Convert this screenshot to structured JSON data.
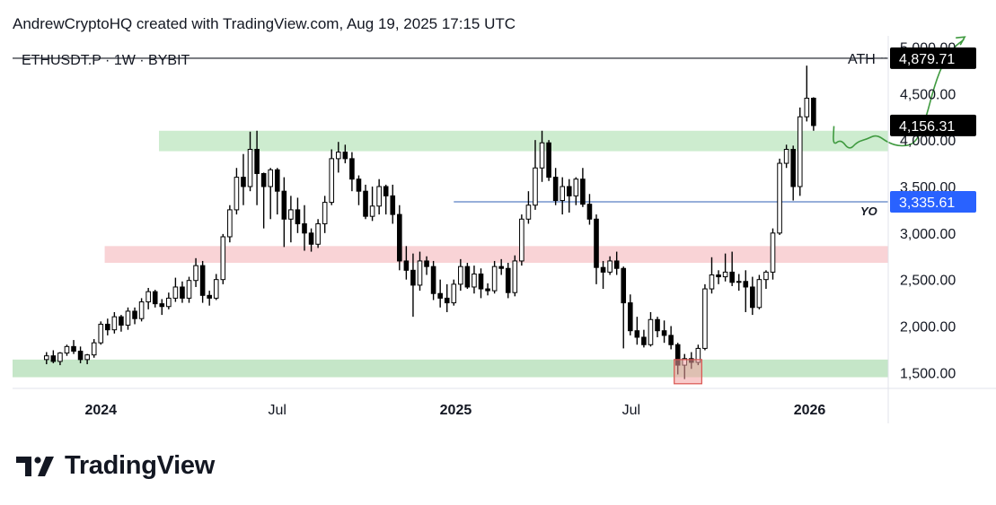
{
  "header": {
    "attribution": "AndrewCryptoHQ created with TradingView.com, Aug 19, 2025 17:15 UTC"
  },
  "footer": {
    "brand": "TradingView"
  },
  "chart_data": {
    "type": "candlestick",
    "title": "ETHUSDT.P · 1W · BYBIT",
    "x_ticks": [
      "2024",
      "Jul",
      "2025",
      "Jul",
      "2026"
    ],
    "y_ticks": [
      "5,000.00",
      "4,500.00",
      "4,000.00",
      "3,500.00",
      "3,000.00",
      "2,500.00",
      "2,000.00",
      "1,500.00"
    ],
    "ylim": [
      1330,
      5120
    ],
    "x_range": [
      "2023-10-02",
      "2026-03-23"
    ],
    "grid": false,
    "zones": [
      {
        "kind": "support",
        "from": 3880,
        "to": 4100,
        "color": "#cdeccf",
        "x_start": "2024-03-01",
        "x_end": "2026-03-23"
      },
      {
        "kind": "resistance",
        "from": 2680,
        "to": 2860,
        "color": "#f9d3d6",
        "x_start": "2024-01-05",
        "x_end": "2026-03-23"
      },
      {
        "kind": "support",
        "from": 1450,
        "to": 1640,
        "color": "#c5e6c8",
        "x_start": "2023-10-02",
        "x_end": "2026-03-23"
      }
    ],
    "lines": [
      {
        "label": "ATH",
        "value": 4879.71,
        "value_label": "4,879.71",
        "color": "#131722",
        "x_start": "2023-10-02"
      },
      {
        "label": "YO",
        "value": 3335.61,
        "value_label": "3,335.61",
        "color": "#2f5fb5",
        "x_start": "2024-12-30"
      }
    ],
    "price_labels": [
      {
        "value": 4879.71,
        "text": "4,879.71",
        "bg": "#000000",
        "fg": "#ffffff"
      },
      {
        "value": 4156.31,
        "text": "4,156.31",
        "bg": "#000000",
        "fg": "#ffffff"
      },
      {
        "value": 3335.61,
        "text": "3,335.61",
        "bg": "#2962ff",
        "fg": "#ffffff"
      }
    ],
    "candles": [
      [
        1640,
        1720,
        1590,
        1680
      ],
      [
        1680,
        1740,
        1600,
        1620
      ],
      [
        1620,
        1720,
        1580,
        1710
      ],
      [
        1710,
        1800,
        1680,
        1780
      ],
      [
        1780,
        1850,
        1700,
        1730
      ],
      [
        1730,
        1780,
        1600,
        1640
      ],
      [
        1640,
        1700,
        1590,
        1690
      ],
      [
        1690,
        1860,
        1660,
        1820
      ],
      [
        1820,
        2050,
        1800,
        2020
      ],
      [
        2020,
        2080,
        1900,
        1960
      ],
      [
        1960,
        2150,
        1920,
        2100
      ],
      [
        2100,
        2120,
        1940,
        2010
      ],
      [
        2010,
        2200,
        1960,
        2160
      ],
      [
        2160,
        2200,
        2020,
        2080
      ],
      [
        2080,
        2300,
        2050,
        2260
      ],
      [
        2260,
        2410,
        2180,
        2370
      ],
      [
        2370,
        2390,
        2200,
        2240
      ],
      [
        2240,
        2290,
        2120,
        2210
      ],
      [
        2210,
        2360,
        2180,
        2300
      ],
      [
        2300,
        2520,
        2260,
        2420
      ],
      [
        2420,
        2480,
        2250,
        2300
      ],
      [
        2300,
        2530,
        2250,
        2490
      ],
      [
        2490,
        2730,
        2420,
        2650
      ],
      [
        2650,
        2700,
        2250,
        2330
      ],
      [
        2330,
        2380,
        2220,
        2300
      ],
      [
        2300,
        2560,
        2280,
        2500
      ],
      [
        2500,
        2990,
        2450,
        2960
      ],
      [
        2960,
        3300,
        2900,
        3250
      ],
      [
        3250,
        3700,
        3200,
        3600
      ],
      [
        3600,
        3850,
        3300,
        3500
      ],
      [
        3500,
        4090,
        3450,
        3900
      ],
      [
        3900,
        4100,
        3300,
        3640
      ],
      [
        3640,
        3650,
        3050,
        3500
      ],
      [
        3500,
        3700,
        3150,
        3680
      ],
      [
        3680,
        3700,
        3200,
        3450
      ],
      [
        3450,
        3600,
        2850,
        3150
      ],
      [
        3150,
        3400,
        2900,
        3250
      ],
      [
        3250,
        3380,
        3000,
        3100
      ],
      [
        3100,
        3300,
        2810,
        3000
      ],
      [
        3000,
        3050,
        2800,
        2880
      ],
      [
        2880,
        3150,
        2840,
        3100
      ],
      [
        3100,
        3400,
        3000,
        3330
      ],
      [
        3330,
        3900,
        3300,
        3800
      ],
      [
        3800,
        3980,
        3650,
        3870
      ],
      [
        3870,
        3950,
        3750,
        3800
      ],
      [
        3800,
        3870,
        3450,
        3580
      ],
      [
        3580,
        3620,
        3300,
        3450
      ],
      [
        3450,
        3520,
        3150,
        3180
      ],
      [
        3180,
        3500,
        3130,
        3290
      ],
      [
        3290,
        3580,
        3200,
        3500
      ],
      [
        3500,
        3520,
        3200,
        3400
      ],
      [
        3400,
        3520,
        3100,
        3200
      ],
      [
        3200,
        3300,
        2600,
        2700
      ],
      [
        2700,
        2860,
        2500,
        2600
      ],
      [
        2600,
        2780,
        2100,
        2440
      ],
      [
        2440,
        2800,
        2380,
        2700
      ],
      [
        2700,
        2750,
        2550,
        2640
      ],
      [
        2640,
        2700,
        2280,
        2350
      ],
      [
        2350,
        2500,
        2200,
        2300
      ],
      [
        2300,
        2450,
        2150,
        2250
      ],
      [
        2250,
        2500,
        2220,
        2450
      ],
      [
        2450,
        2720,
        2380,
        2640
      ],
      [
        2640,
        2680,
        2400,
        2420
      ],
      [
        2420,
        2650,
        2350,
        2560
      ],
      [
        2560,
        2620,
        2300,
        2400
      ],
      [
        2400,
        2460,
        2330,
        2380
      ],
      [
        2380,
        2700,
        2350,
        2640
      ],
      [
        2640,
        2720,
        2550,
        2620
      ],
      [
        2620,
        2680,
        2300,
        2360
      ],
      [
        2360,
        2760,
        2320,
        2700
      ],
      [
        2700,
        3200,
        2650,
        3150
      ],
      [
        3150,
        3450,
        3100,
        3300
      ],
      [
        3300,
        4000,
        3250,
        3700
      ],
      [
        3700,
        4100,
        3550,
        3970
      ],
      [
        3970,
        4000,
        3560,
        3600
      ],
      [
        3600,
        3700,
        3300,
        3350
      ],
      [
        3350,
        3600,
        3200,
        3500
      ],
      [
        3500,
        3580,
        3220,
        3400
      ],
      [
        3400,
        3600,
        3300,
        3580
      ],
      [
        3580,
        3700,
        3280,
        3310
      ],
      [
        3310,
        3420,
        3090,
        3150
      ],
      [
        3150,
        3200,
        2450,
        2630
      ],
      [
        2630,
        2700,
        2400,
        2580
      ],
      [
        2580,
        2750,
        2550,
        2700
      ],
      [
        2700,
        2800,
        2550,
        2620
      ],
      [
        2620,
        2640,
        1760,
        2250
      ],
      [
        2250,
        2340,
        1900,
        1950
      ],
      [
        1950,
        2100,
        1800,
        1880
      ],
      [
        1880,
        1960,
        1770,
        1800
      ],
      [
        1800,
        2150,
        1780,
        2070
      ],
      [
        2070,
        2100,
        1880,
        1950
      ],
      [
        1950,
        2060,
        1820,
        1900
      ],
      [
        1900,
        2000,
        1750,
        1800
      ],
      [
        1800,
        1820,
        1480,
        1580
      ],
      [
        1580,
        1700,
        1430,
        1650
      ],
      [
        1650,
        1720,
        1540,
        1610
      ],
      [
        1610,
        1800,
        1580,
        1760
      ],
      [
        1760,
        2450,
        1740,
        2400
      ],
      [
        2400,
        2740,
        2350,
        2550
      ],
      [
        2550,
        2600,
        2450,
        2530
      ],
      [
        2530,
        2780,
        2480,
        2580
      ],
      [
        2580,
        2800,
        2430,
        2470
      ],
      [
        2470,
        2560,
        2380,
        2480
      ],
      [
        2480,
        2600,
        2150,
        2420
      ],
      [
        2420,
        2530,
        2120,
        2200
      ],
      [
        2200,
        2550,
        2180,
        2500
      ],
      [
        2500,
        2600,
        2400,
        2580
      ],
      [
        2580,
        3050,
        2500,
        3000
      ],
      [
        3000,
        3800,
        2980,
        3750
      ],
      [
        3750,
        3950,
        3700,
        3900
      ],
      [
        3900,
        3940,
        3350,
        3500
      ],
      [
        3500,
        4350,
        3400,
        4250
      ],
      [
        4250,
        4800,
        4200,
        4450
      ],
      [
        4450,
        4460,
        4100,
        4156
      ]
    ],
    "projection": [
      [
        4156,
        4150
      ],
      [
        4155,
        3940
      ],
      [
        4163,
        4010
      ],
      [
        4172,
        3890
      ],
      [
        4180,
        3980
      ],
      [
        4190,
        4010
      ],
      [
        4200,
        4060
      ],
      [
        4212,
        3970
      ],
      [
        4225,
        3930
      ],
      [
        4240,
        3960
      ],
      [
        4250,
        4200
      ],
      [
        4260,
        4600
      ],
      [
        4270,
        4860
      ],
      [
        4280,
        5000
      ],
      [
        4290,
        5080
      ]
    ],
    "up_color": "#ffffff",
    "down_color": "#000000"
  }
}
